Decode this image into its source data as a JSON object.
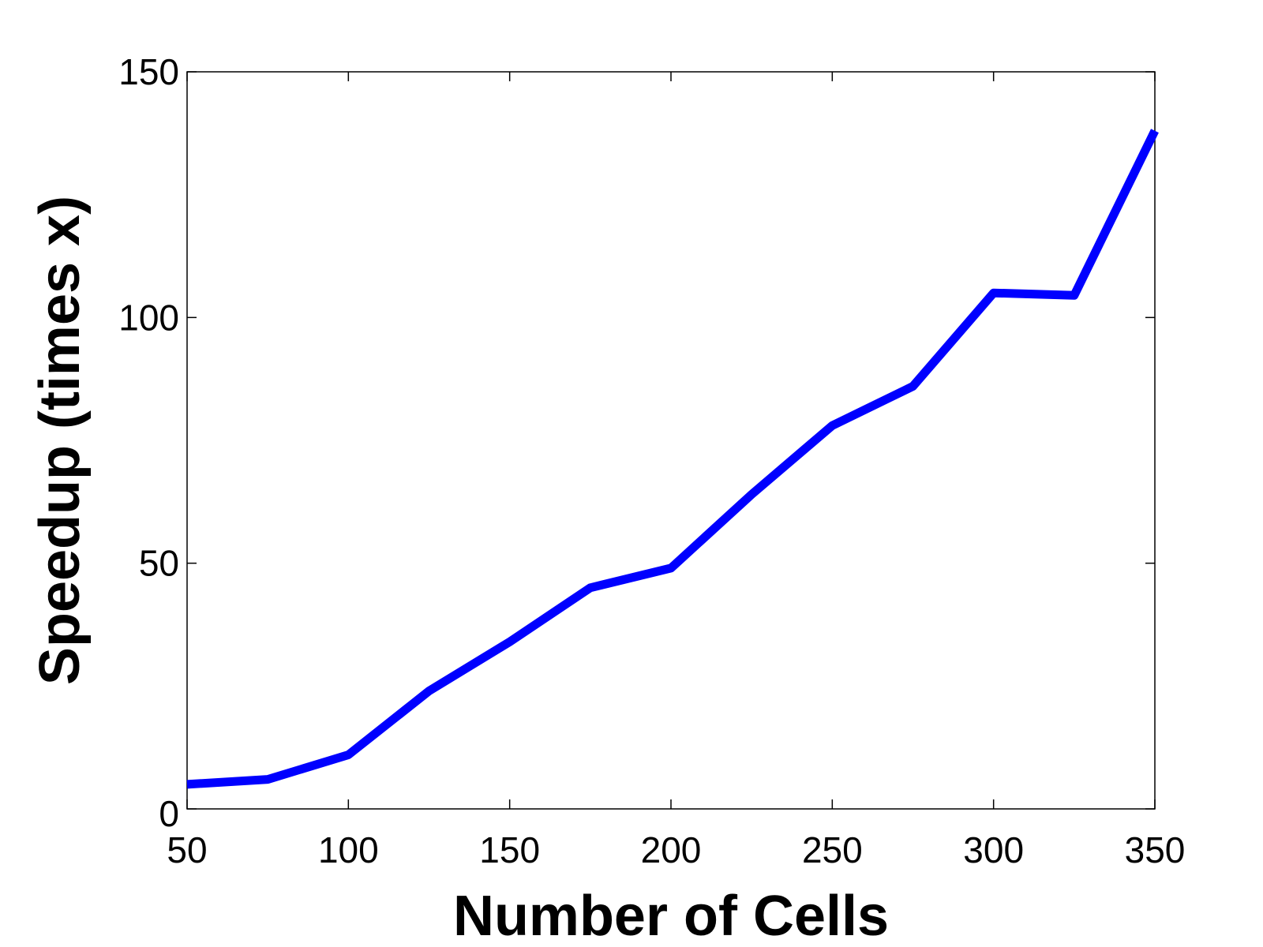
{
  "chart_data": {
    "type": "line",
    "title": "",
    "xlabel": "Number of Cells",
    "ylabel": "Speedup (times x)",
    "xlim": [
      50,
      350
    ],
    "ylim": [
      0,
      150
    ],
    "xticks": [
      50,
      100,
      150,
      200,
      250,
      300,
      350
    ],
    "yticks": [
      0,
      50,
      100,
      150
    ],
    "grid": false,
    "series": [
      {
        "color": "#0000ff",
        "x": [
          50,
          75,
          100,
          125,
          150,
          175,
          200,
          225,
          250,
          275,
          300,
          325,
          350
        ],
        "y": [
          5,
          6,
          11,
          24,
          34,
          45,
          49,
          64,
          78,
          86,
          105,
          104.5,
          138
        ]
      }
    ]
  }
}
